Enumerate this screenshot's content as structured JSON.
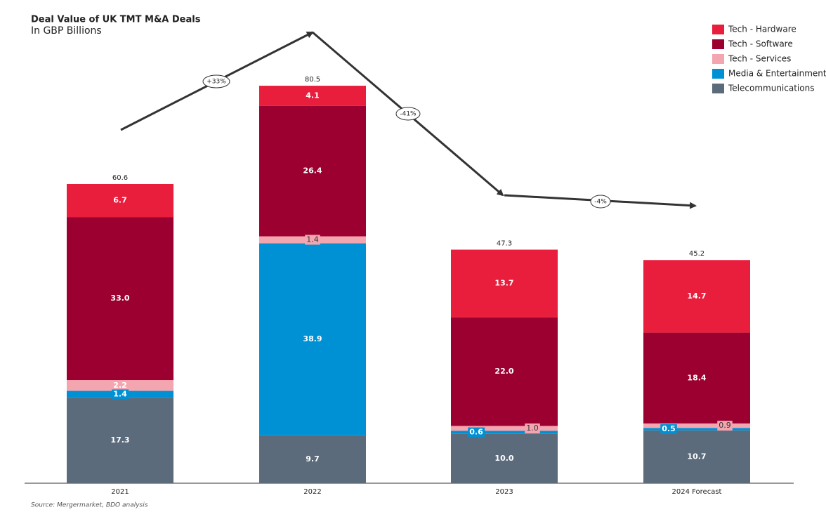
{
  "chart_data": {
    "type": "stacked-bar",
    "title": "Deal Value of UK TMT M&A Deals",
    "subtitle": "In GBP Billions",
    "source": "Source: Mergermarket, BDO analysis",
    "categories": [
      "2021",
      "2022",
      "2023",
      "2024 Forecast"
    ],
    "series": [
      {
        "name": "Telecommunications",
        "color": "#5b6b7c",
        "values": [
          17.3,
          9.7,
          10.0,
          10.7
        ],
        "value_labels": [
          "17.3",
          "9.7",
          "10.0",
          "10.7"
        ]
      },
      {
        "name": "Media & Entertainment",
        "color": "#0091d5",
        "values": [
          1.4,
          38.9,
          0.6,
          0.5
        ],
        "value_labels": [
          "1.4",
          "38.9",
          "0.6",
          "0.5"
        ]
      },
      {
        "name": "Tech - Services",
        "color": "#f4a6b0",
        "values": [
          2.2,
          1.4,
          1.0,
          0.9
        ],
        "value_labels": [
          "2.2",
          "1.4",
          "1.0",
          "0.9"
        ]
      },
      {
        "name": "Tech - Software",
        "color": "#9b0030",
        "values": [
          33.0,
          26.4,
          22.0,
          18.4
        ],
        "value_labels": [
          "33.0",
          "26.4",
          "22.0",
          "18.4"
        ]
      },
      {
        "name": "Tech - Hardware",
        "color": "#e81e3c",
        "values": [
          6.7,
          4.1,
          13.7,
          14.7
        ],
        "value_labels": [
          "6.7",
          "4.1",
          "13.7",
          "14.7"
        ]
      }
    ],
    "totals": [
      60.6,
      80.5,
      47.3,
      45.2
    ],
    "annotations": [
      "+33%",
      "-41%",
      "-4%"
    ],
    "legend": "top-right"
  }
}
